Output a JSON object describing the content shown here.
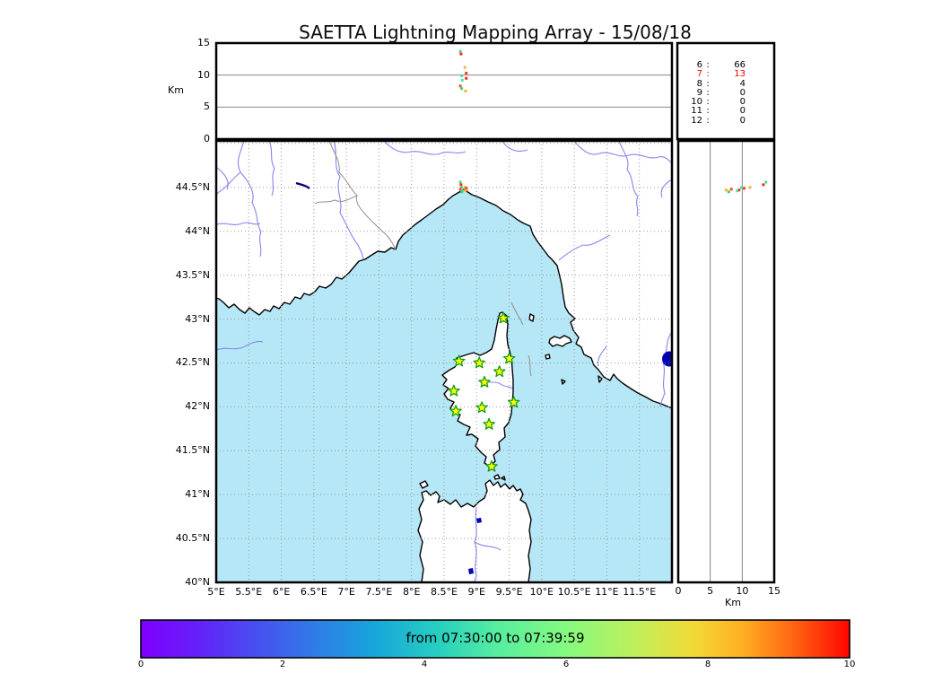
{
  "title": "SAETTA Lightning Mapping Array - 15/08/18",
  "alt_lon_panel": {
    "ylabel": "Km",
    "yticks": [
      {
        "value": 0,
        "label": "0"
      },
      {
        "value": 5,
        "label": "5"
      },
      {
        "value": 10,
        "label": "10"
      },
      {
        "value": 15,
        "label": "15"
      }
    ]
  },
  "stats_panel": {
    "rows": [
      {
        "hour": "6",
        "sep": ":",
        "count": "66",
        "highlight": false
      },
      {
        "hour": "7",
        "sep": ":",
        "count": "13",
        "highlight": true
      },
      {
        "hour": "8",
        "sep": ":",
        "count": "4",
        "highlight": false
      },
      {
        "hour": "9",
        "sep": ":",
        "count": "0",
        "highlight": false
      },
      {
        "hour": "10",
        "sep": ":",
        "count": "0",
        "highlight": false
      },
      {
        "hour": "11",
        "sep": ":",
        "count": "0",
        "highlight": false
      },
      {
        "hour": "12",
        "sep": ":",
        "count": "0",
        "highlight": false
      }
    ]
  },
  "map_panel": {
    "lat_ticks": [
      {
        "value": 44.5,
        "label": "44.5°N"
      },
      {
        "value": 44,
        "label": "44°N"
      },
      {
        "value": 43.5,
        "label": "43.5°N"
      },
      {
        "value": 43,
        "label": "43°N"
      },
      {
        "value": 42.5,
        "label": "42.5°N"
      },
      {
        "value": 42,
        "label": "42°N"
      },
      {
        "value": 41.5,
        "label": "41.5°N"
      },
      {
        "value": 41,
        "label": "41°N"
      },
      {
        "value": 40.5,
        "label": "40.5°N"
      },
      {
        "value": 40,
        "label": "40°N"
      }
    ],
    "lon_ticks": [
      {
        "value": 5,
        "label": "5°E"
      },
      {
        "value": 5.5,
        "label": "5.5°E"
      },
      {
        "value": 6,
        "label": "6°E"
      },
      {
        "value": 6.5,
        "label": "6.5°E"
      },
      {
        "value": 7,
        "label": "7°E"
      },
      {
        "value": 7.5,
        "label": "7.5°E"
      },
      {
        "value": 8,
        "label": "8°E"
      },
      {
        "value": 8.5,
        "label": "8.5°E"
      },
      {
        "value": 9,
        "label": "9°E"
      },
      {
        "value": 9.5,
        "label": "9.5°E"
      },
      {
        "value": 10,
        "label": "10°E"
      },
      {
        "value": 10.5,
        "label": "10.5°E"
      },
      {
        "value": 11,
        "label": "11°E"
      },
      {
        "value": 11.5,
        "label": "11.5°E"
      }
    ]
  },
  "alt_lat_panel": {
    "xlabel": "Km",
    "xticks": [
      {
        "value": 0,
        "label": "0"
      },
      {
        "value": 5,
        "label": "5"
      },
      {
        "value": 10,
        "label": "10"
      },
      {
        "value": 15,
        "label": "15"
      }
    ]
  },
  "colorbar": {
    "label": "from 07:30:00 to 07:39:59",
    "range": [
      0,
      10
    ],
    "ticks": [
      {
        "value": 0,
        "label": "0"
      },
      {
        "value": 2,
        "label": "2"
      },
      {
        "value": 4,
        "label": "4"
      },
      {
        "value": 6,
        "label": "6"
      },
      {
        "value": 8,
        "label": "8"
      },
      {
        "value": 10,
        "label": "10"
      }
    ]
  },
  "colors": {
    "sea": "#b6e7f7",
    "land": "#ffffff",
    "coast": "#000000",
    "river": "#8585f2",
    "border_line": "#909090",
    "grid": "#999999",
    "panel_grid": "#777777",
    "station_fill": "#ffff00",
    "station_stroke": "#15a015",
    "highlight": "#ff0000",
    "lake": "#0000b0",
    "colorbar_start": "#7f00ff",
    "colorbar_end": "#ff0000"
  },
  "chart_data": {
    "type": "scatter",
    "title": "SAETTA Lightning Mapping Array - 15/08/18",
    "date": "15/08/18",
    "time_window": {
      "from": "07:30:00",
      "to": "07:39:59"
    },
    "map_extent": {
      "lon": [
        5,
        12
      ],
      "lat": [
        40,
        45.03
      ]
    },
    "grid_step_deg": 0.5,
    "alt_axis_km": {
      "range": [
        0,
        15
      ],
      "ticks": [
        0,
        5,
        10,
        15
      ],
      "gridlines": [
        5,
        10
      ]
    },
    "hourly_counts": [
      {
        "hour": 6,
        "count": 66
      },
      {
        "hour": 7,
        "count": 13
      },
      {
        "hour": 8,
        "count": 4
      },
      {
        "hour": 9,
        "count": 0
      },
      {
        "hour": 10,
        "count": 0
      },
      {
        "hour": 11,
        "count": 0
      },
      {
        "hour": 12,
        "count": 0
      }
    ],
    "active_hour": 7,
    "stations_lonlat": [
      [
        9.41,
        43.01
      ],
      [
        8.73,
        42.52
      ],
      [
        9.04,
        42.5
      ],
      [
        9.5,
        42.55
      ],
      [
        9.35,
        42.4
      ],
      [
        9.12,
        42.28
      ],
      [
        8.65,
        42.18
      ],
      [
        9.57,
        42.05
      ],
      [
        9.08,
        41.99
      ],
      [
        8.68,
        41.95
      ],
      [
        9.19,
        41.8
      ],
      [
        9.23,
        41.32
      ]
    ],
    "sources": [
      {
        "lon": 8.75,
        "lat": 44.56,
        "alt_km": 13.7,
        "color": "#3fe08c"
      },
      {
        "lon": 8.76,
        "lat": 44.53,
        "alt_km": 13.3,
        "color": "#ff2a12"
      },
      {
        "lon": 8.82,
        "lat": 44.5,
        "alt_km": 11.2,
        "color": "#ffb141"
      },
      {
        "lon": 8.84,
        "lat": 44.49,
        "alt_km": 10.3,
        "color": "#ff3b0e"
      },
      {
        "lon": 8.77,
        "lat": 44.5,
        "alt_km": 9.9,
        "color": "#3fe0a0"
      },
      {
        "lon": 8.84,
        "lat": 44.47,
        "alt_km": 9.5,
        "color": "#ff2a12"
      },
      {
        "lon": 8.78,
        "lat": 44.46,
        "alt_km": 9.2,
        "color": "#4ae8b4"
      },
      {
        "lon": 8.75,
        "lat": 44.48,
        "alt_km": 8.3,
        "color": "#ff4c1a"
      },
      {
        "lon": 8.77,
        "lat": 44.45,
        "alt_km": 7.9,
        "color": "#38d576"
      },
      {
        "lon": 8.83,
        "lat": 44.47,
        "alt_km": 7.5,
        "color": "#ffad33"
      }
    ],
    "colorbar": {
      "range": [
        0,
        10
      ],
      "ticks": [
        0,
        2,
        4,
        6,
        8,
        10
      ],
      "label": "from 07:30:00 to 07:39:59",
      "colormap": "rainbow"
    }
  }
}
